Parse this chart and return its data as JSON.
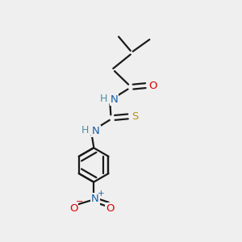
{
  "bg_color": "#efefef",
  "bond_color": "#1a1a1a",
  "bond_width": 1.6,
  "atom_colors": {
    "N": "#1a5fa8",
    "O": "#e00000",
    "S": "#b8960a",
    "H": "#4a8fa8",
    "C": "#1a1a1a"
  },
  "font_size": 9.5,
  "ring_r": 0.72
}
